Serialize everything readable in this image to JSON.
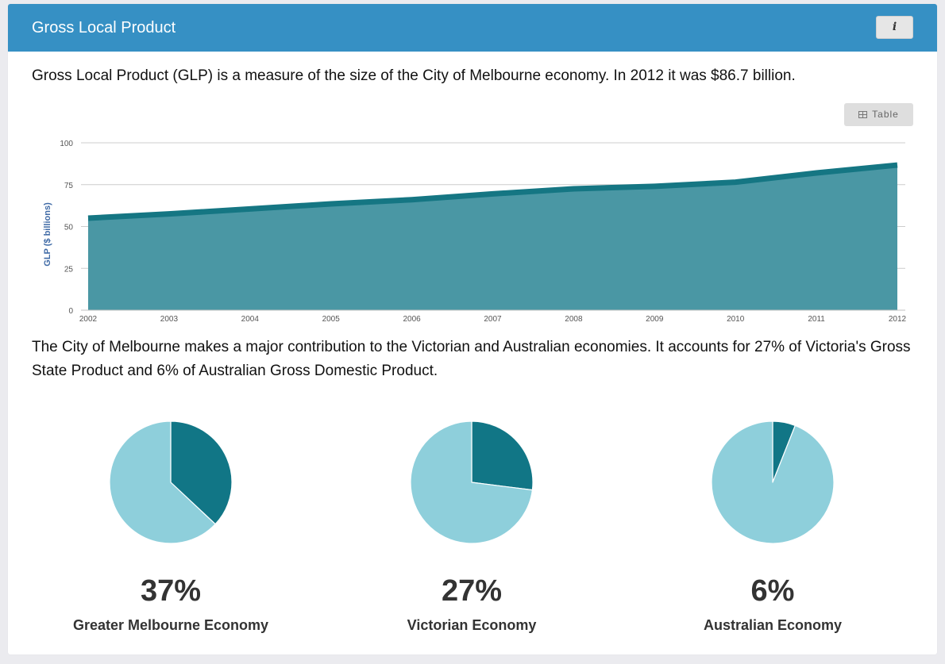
{
  "header": {
    "title": "Gross Local Product",
    "info_label": "i"
  },
  "intro_text": "Gross Local Product (GLP) is a measure of the size of the City of Melbourne economy. In 2012 it was $86.7 billion.",
  "table_button_label": "Table",
  "chart_data": [
    {
      "type": "area",
      "title": "",
      "xlabel": "",
      "ylabel": "GLP ($ billions)",
      "x": [
        "2002",
        "2003",
        "2004",
        "2005",
        "2006",
        "2007",
        "2008",
        "2009",
        "2010",
        "2011",
        "2012"
      ],
      "y_ticks": [
        0,
        25,
        50,
        75,
        100
      ],
      "ylim": [
        0,
        100
      ],
      "grid": true,
      "series": [
        {
          "values": [
            55,
            57.5,
            60.5,
            63.5,
            66,
            69.5,
            72.5,
            74,
            76.5,
            82,
            86.7
          ]
        }
      ],
      "colors": {
        "fill": "#4a97a4",
        "line": "#157683",
        "grid": "#cccccc",
        "axis_title": "#3f6aa6"
      }
    },
    {
      "type": "pie",
      "title": "Greater Melbourne Economy",
      "slices": [
        {
          "value": 37
        },
        {
          "value": 63
        }
      ],
      "colors": [
        "#117686",
        "#8ecfdb"
      ]
    },
    {
      "type": "pie",
      "title": "Victorian Economy",
      "slices": [
        {
          "value": 27
        },
        {
          "value": 73
        }
      ],
      "colors": [
        "#117686",
        "#8ecfdb"
      ]
    },
    {
      "type": "pie",
      "title": "Australian Economy",
      "slices": [
        {
          "value": 6
        },
        {
          "value": 94
        }
      ],
      "colors": [
        "#117686",
        "#8ecfdb"
      ]
    }
  ],
  "contribution_text": "The City of Melbourne makes a major contribution to the Victorian and Australian economies. It accounts for 27% of Victoria's Gross State Product and 6% of Australian Gross Domestic Product.",
  "pies": [
    {
      "percent_label": "37%",
      "label": "Greater Melbourne Economy"
    },
    {
      "percent_label": "27%",
      "label": "Victorian Economy"
    },
    {
      "percent_label": "6%",
      "label": "Australian Economy"
    }
  ]
}
